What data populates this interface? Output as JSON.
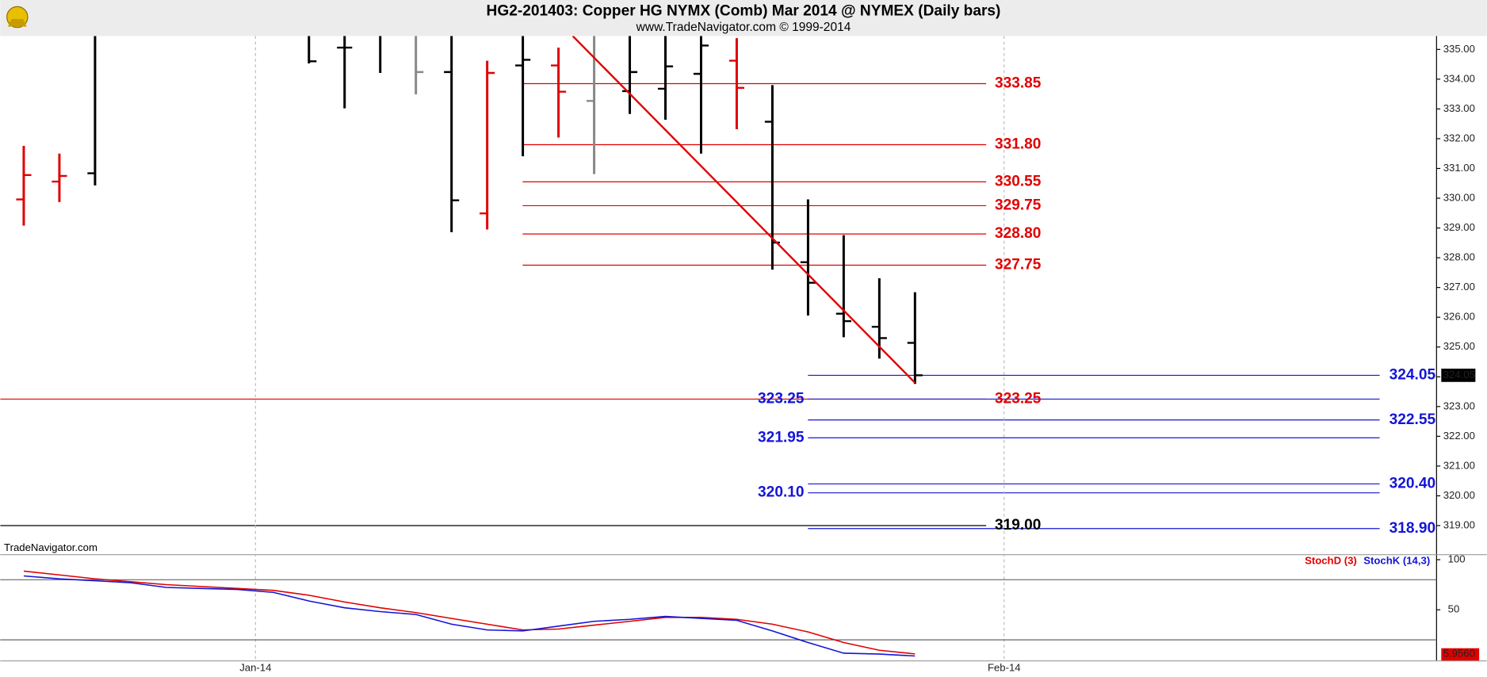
{
  "chart_data": {
    "type": "ohlc",
    "title": "HG2-201403:  Copper HG NYMX (Comb) Mar 2014 @ NYMEX  (Daily bars)",
    "subtitle": "www.TradeNavigator.com © 1999-2014",
    "watermark": "TradeNavigator.com",
    "ylim": [
      318.5,
      335.45
    ],
    "yticks": [
      {
        "value": 319,
        "label": "319.00"
      },
      {
        "value": 320,
        "label": "320.00"
      },
      {
        "value": 321,
        "label": "321.00"
      },
      {
        "value": 322,
        "label": "322.00"
      },
      {
        "value": 323,
        "label": "323.00"
      },
      {
        "value": 324,
        "label": "324.00"
      },
      {
        "value": 325,
        "label": "325.00"
      },
      {
        "value": 326,
        "label": "326.00"
      },
      {
        "value": 327,
        "label": "327.00"
      },
      {
        "value": 328,
        "label": "328.00"
      },
      {
        "value": 329,
        "label": "329.00"
      },
      {
        "value": 330,
        "label": "330.00"
      },
      {
        "value": 331,
        "label": "331.00"
      },
      {
        "value": 332,
        "label": "332.00"
      },
      {
        "value": 333,
        "label": "333.00"
      },
      {
        "value": 334,
        "label": "334.00"
      },
      {
        "value": 335,
        "label": "335.00"
      }
    ],
    "xlim": [
      -0.66,
      39.63
    ],
    "xticks": [
      {
        "value": 6.5,
        "label": "Jan-14"
      },
      {
        "value": 27.5,
        "label": "Feb-14"
      }
    ],
    "grid": true,
    "bars": {
      "x": [
        0,
        1,
        2,
        8,
        9,
        10,
        11,
        12,
        13,
        14,
        15,
        16,
        17,
        18,
        19,
        20,
        21,
        22,
        23,
        24,
        25
      ],
      "opens": [
        329.96,
        330.56,
        330.84,
        336.0,
        335.06,
        336.2,
        336.0,
        334.24,
        329.49,
        334.46,
        334.46,
        333.27,
        333.6,
        333.68,
        334.18,
        334.62,
        332.57,
        327.85,
        326.12,
        325.68,
        325.14
      ],
      "highs": [
        331.76,
        331.5,
        336.0,
        336.2,
        335.8,
        336.5,
        336.2,
        336.5,
        334.62,
        336.0,
        335.06,
        335.8,
        335.5,
        335.6,
        335.5,
        335.38,
        333.8,
        329.96,
        328.76,
        327.31,
        326.84
      ],
      "lows": [
        329.08,
        329.87,
        330.43,
        334.53,
        333.02,
        334.21,
        333.49,
        328.86,
        328.95,
        331.41,
        332.04,
        330.81,
        332.83,
        332.64,
        331.5,
        332.32,
        327.6,
        326.06,
        325.33,
        324.61,
        323.76
      ],
      "closes": [
        330.78,
        330.75,
        335.8,
        334.6,
        335.06,
        335.8,
        334.24,
        329.93,
        334.21,
        334.65,
        333.58,
        335.5,
        334.24,
        334.43,
        335.13,
        333.71,
        328.51,
        327.16,
        325.87,
        325.3,
        324.05
      ],
      "colors": [
        "#e00000",
        "#e00000",
        "#000000",
        "#000000",
        "#000000",
        "#000000",
        "#888888",
        "#000000",
        "#e00000",
        "#000000",
        "#e00000",
        "#888888",
        "#000000",
        "#000000",
        "#000000",
        "#e00000",
        "#000000",
        "#000000",
        "#000000",
        "#000000",
        "#000000"
      ]
    },
    "last_label": "324.05",
    "trendline": {
      "x": [
        15.4,
        25
      ],
      "values": [
        335.45,
        323.8
      ],
      "color": "#e00000"
    },
    "levels": [
      {
        "color": "#e00000",
        "values": [
          333.85,
          331.8,
          330.55,
          329.75,
          328.8,
          327.75
        ],
        "value_labels": [
          "333.85",
          "331.80",
          "330.55",
          "329.75",
          "328.80",
          "327.75"
        ]
      },
      {
        "color": "#e00000",
        "values": [
          323.25
        ],
        "value_labels": [
          "323.25"
        ]
      },
      {
        "color": "#000000",
        "values": [
          319
        ],
        "value_labels": [
          "319.00"
        ]
      },
      {
        "color": "#1414d8",
        "values": [
          324.05,
          322.55,
          320.4,
          318.9
        ],
        "value_labels": [
          "324.05",
          "322.55",
          "320.40",
          "318.90"
        ]
      },
      {
        "color": "#1414d8",
        "values": [
          323.25,
          321.95,
          320.1
        ],
        "value_labels": [
          "323.25",
          "321.95",
          "320.10"
        ]
      }
    ],
    "indicator": {
      "type": "line",
      "ylim": [
        -1,
        105
      ],
      "yticks": [
        50,
        100
      ],
      "levels": [
        80,
        20
      ],
      "x": [
        0,
        1,
        2,
        3,
        4,
        5,
        6,
        7,
        8,
        9,
        10,
        11,
        12,
        13,
        14,
        15,
        16,
        17,
        18,
        19,
        20,
        21,
        22,
        23,
        24,
        25
      ],
      "series": [
        {
          "name": "StochD (3)",
          "color": "#e00000",
          "values": [
            88.6,
            84.8,
            80.9,
            78,
            75.1,
            73.2,
            71.3,
            69.4,
            64.5,
            57.8,
            52,
            47.2,
            41.4,
            35.6,
            29.9,
            30.8,
            34.7,
            38.5,
            42.4,
            42.4,
            40.5,
            35.6,
            27.9,
            17.3,
            9.6,
            5.956
          ]
        },
        {
          "name": "StochK (14,3)",
          "color": "#1414d8",
          "values": [
            83.8,
            80.9,
            79,
            77,
            72.3,
            71.3,
            70.3,
            67.4,
            58.8,
            52,
            48.2,
            45.3,
            35.6,
            29.9,
            28.9,
            33.7,
            38.5,
            40.5,
            43.4,
            41.4,
            39.5,
            28.9,
            17.3,
            6.7,
            5.8,
            3.9
          ]
        }
      ],
      "last_label": "5.9560"
    }
  }
}
